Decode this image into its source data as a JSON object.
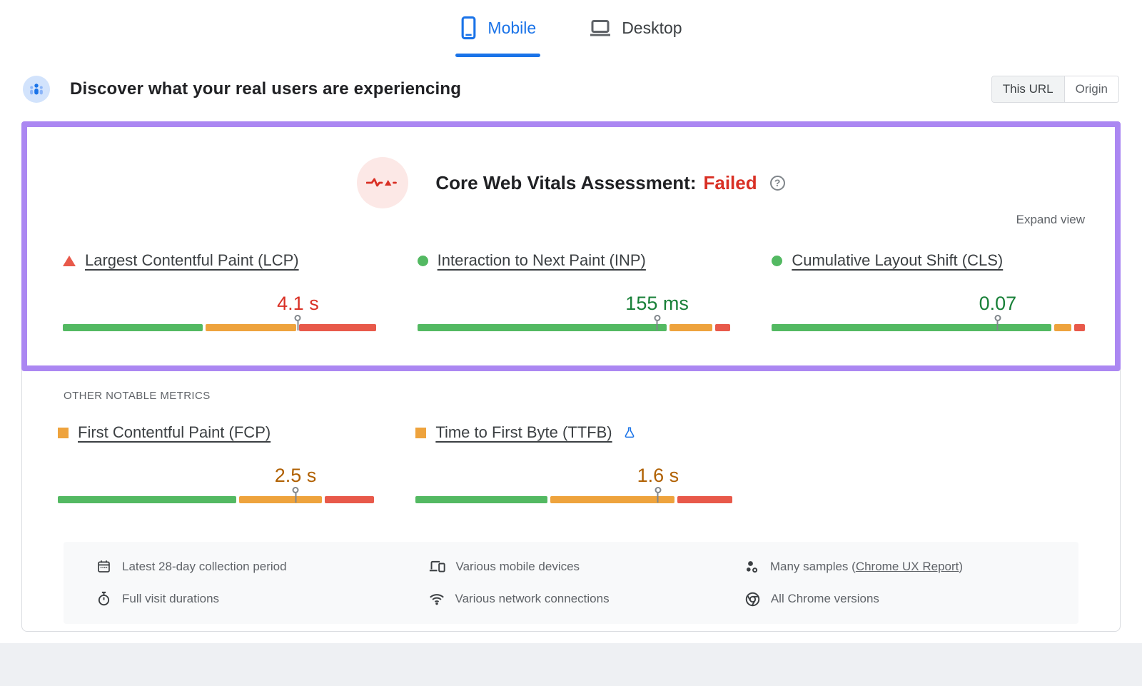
{
  "tabs": {
    "mobile": "Mobile",
    "desktop": "Desktop"
  },
  "header": {
    "title": "Discover what your real users are experiencing",
    "toggle": [
      "This URL",
      "Origin"
    ]
  },
  "assessment": {
    "title": "Core Web Vitals Assessment:",
    "status": "Failed",
    "help_glyph": "?",
    "expand": "Expand view"
  },
  "metrics": {
    "core": [
      {
        "id": "lcp",
        "label": "Largest Contentful Paint (LCP)",
        "status": "poor",
        "value": "4.1 s",
        "value_color": "#d93025",
        "dist": [
          45.5,
          29.5,
          25
        ],
        "marker": 76.5,
        "flask": false
      },
      {
        "id": "inp",
        "label": "Interaction to Next Paint (INP)",
        "status": "good",
        "value": "155 ms",
        "value_color": "#188038",
        "dist": [
          81,
          14,
          5
        ],
        "marker": 78,
        "flask": false
      },
      {
        "id": "cls",
        "label": "Cumulative Layout Shift (CLS)",
        "status": "good",
        "value": "0.07",
        "value_color": "#188038",
        "dist": [
          91,
          5.5,
          3.5
        ],
        "marker": 73.5,
        "flask": false
      }
    ],
    "other_label": "OTHER NOTABLE METRICS",
    "other": [
      {
        "id": "fcp",
        "label": "First Contentful Paint (FCP)",
        "status": "average",
        "value": "2.5 s",
        "value_color": "#b06000",
        "dist": [
          57.5,
          26.5,
          16
        ],
        "marker": 76.5,
        "flask": false
      },
      {
        "id": "ttfb",
        "label": "Time to First Byte (TTFB)",
        "status": "average",
        "value": "1.6 s",
        "value_color": "#b06000",
        "dist": [
          42.5,
          40,
          17.5
        ],
        "marker": 78,
        "flask": true
      }
    ]
  },
  "footer": {
    "items": [
      {
        "icon": "calendar-icon",
        "text": "Latest 28-day collection period"
      },
      {
        "icon": "devices-icon",
        "text": "Various mobile devices"
      },
      {
        "icon": "samples-icon",
        "text_prefix": "Many samples (",
        "link": "Chrome UX Report",
        "text_suffix": ")"
      },
      {
        "icon": "stopwatch-icon",
        "text": "Full visit durations"
      },
      {
        "icon": "wifi-icon",
        "text": "Various network connections"
      },
      {
        "icon": "chrome-icon",
        "text": "All Chrome versions"
      }
    ]
  },
  "colors": {
    "good": "#53b962",
    "average": "#eea33d",
    "poor": "#e8594a",
    "accent_blue": "#1a73e8",
    "fail_red": "#d93025",
    "highlight_purple": "#ab87f2"
  }
}
